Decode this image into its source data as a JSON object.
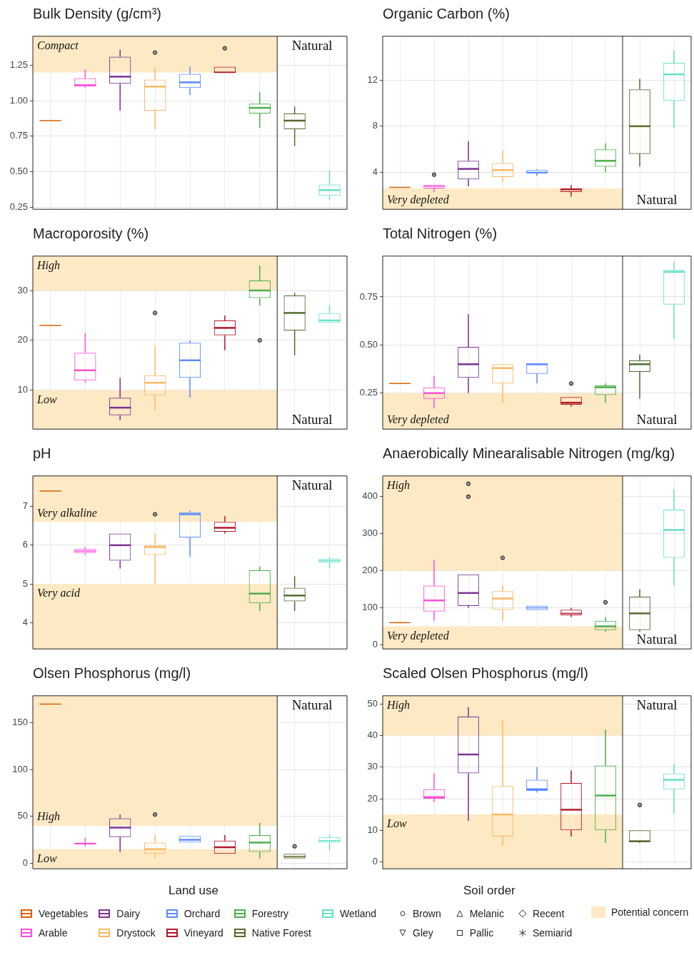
{
  "chart_data": [
    {
      "type": "box",
      "title": "Bulk Density (g/cm³)",
      "categories": [
        null,
        null,
        null,
        null,
        null,
        null,
        null,
        null,
        null
      ],
      "colors": [
        "#d95f02",
        "#ff4fd8",
        "#7b3294",
        "#fdb863",
        "#5b8cff",
        "#b2182b",
        "#4daf4a",
        "#556b2f",
        "#66e0c8"
      ],
      "boxes": [
        {
          "low": 0.86,
          "q1": 0.86,
          "median": 0.86,
          "q3": 0.86,
          "high": 0.86
        },
        {
          "low": 1.09,
          "q1": 1.1,
          "median": 1.11,
          "q3": 1.16,
          "high": 1.22
        },
        {
          "low": 0.93,
          "q1": 1.12,
          "median": 1.17,
          "q3": 1.31,
          "high": 1.36
        },
        {
          "low": 0.8,
          "q1": 0.93,
          "median": 1.1,
          "q3": 1.15,
          "high": 1.23,
          "outliers": [
            1.34
          ]
        },
        {
          "low": 1.04,
          "q1": 1.09,
          "median": 1.13,
          "q3": 1.19,
          "high": 1.24
        },
        {
          "low": 1.2,
          "q1": 1.2,
          "median": 1.2,
          "q3": 1.24,
          "high": 1.24,
          "outliers": [
            1.37
          ]
        },
        {
          "low": 0.81,
          "q1": 0.91,
          "median": 0.95,
          "q3": 0.98,
          "high": 1.06
        },
        {
          "low": 0.68,
          "q1": 0.8,
          "median": 0.86,
          "q3": 0.91,
          "high": 0.96
        },
        {
          "low": 0.3,
          "q1": 0.33,
          "median": 0.37,
          "q3": 0.41,
          "high": 0.51
        }
      ],
      "ylim": [
        0.235,
        1.455
      ],
      "yticks": [
        {
          "value": 0.25,
          "label": "0.25"
        },
        {
          "value": 0.5,
          "label": "0.50"
        },
        {
          "value": 0.75,
          "label": "0.75"
        },
        {
          "value": 1,
          "label": "1.00"
        },
        {
          "value": 1.25,
          "label": "1.25"
        }
      ],
      "grid": true,
      "tick_labels": "y",
      "bands": [
        {
          "axis": "y",
          "from": 1.2,
          "to": 1.455,
          "label": "Compact",
          "color": "#fde9c4"
        }
      ],
      "annotations": [
        "Natural"
      ]
    },
    {
      "type": "box",
      "title": "Organic Carbon (%)",
      "categories": [
        null,
        null,
        null,
        null,
        null,
        null,
        null,
        null,
        null
      ],
      "colors": [
        "#d95f02",
        "#ff4fd8",
        "#7b3294",
        "#fdb863",
        "#5b8cff",
        "#b2182b",
        "#4daf4a",
        "#556b2f",
        "#66e0c8"
      ],
      "boxes": [
        {
          "low": 2.7,
          "q1": 2.7,
          "median": 2.7,
          "q3": 2.7,
          "high": 2.7
        },
        {
          "low": 2.3,
          "q1": 2.6,
          "median": 2.8,
          "q3": 2.9,
          "high": 2.9,
          "outliers": [
            3.8
          ]
        },
        {
          "low": 2.8,
          "q1": 3.4,
          "median": 4.3,
          "q3": 5,
          "high": 6.7
        },
        {
          "low": 3.2,
          "q1": 3.6,
          "median": 4.2,
          "q3": 4.8,
          "high": 5.9
        },
        {
          "low": 3.7,
          "q1": 3.9,
          "median": 4,
          "q3": 4.2,
          "high": 4.3
        },
        {
          "low": 1.9,
          "q1": 2.3,
          "median": 2.5,
          "q3": 2.6,
          "high": 2.9
        },
        {
          "low": 4,
          "q1": 4.5,
          "median": 5,
          "q3": 6,
          "high": 6.5
        },
        {
          "low": 4.5,
          "q1": 5.6,
          "median": 8,
          "q3": 11.2,
          "high": 12.1
        },
        {
          "low": 7.8,
          "q1": 10.2,
          "median": 12.5,
          "q3": 13.5,
          "high": 14.6
        }
      ],
      "ylim": [
        0.8,
        15.8
      ],
      "yticks": [
        4,
        8,
        12
      ],
      "grid": true,
      "tick_labels": "y",
      "bands": [
        {
          "axis": "y",
          "from": 0.8,
          "to": 2.6,
          "label": "Very depleted",
          "color": "#fde9c4"
        }
      ],
      "annotations": [
        "Natural"
      ]
    },
    {
      "type": "box",
      "title": "Macroporosity (%)",
      "categories": [
        null,
        null,
        null,
        null,
        null,
        null,
        null,
        null,
        null
      ],
      "colors": [
        "#d95f02",
        "#ff4fd8",
        "#7b3294",
        "#fdb863",
        "#5b8cff",
        "#b2182b",
        "#4daf4a",
        "#556b2f",
        "#66e0c8"
      ],
      "boxes": [
        {
          "low": 23,
          "q1": 23,
          "median": 23,
          "q3": 23,
          "high": 23
        },
        {
          "low": 11.5,
          "q1": 12,
          "median": 14,
          "q3": 17.5,
          "high": 21.5
        },
        {
          "low": 4,
          "q1": 5,
          "median": 6.5,
          "q3": 8.5,
          "high": 12.5
        },
        {
          "low": 6,
          "q1": 9,
          "median": 11.5,
          "q3": 13,
          "high": 19,
          "outliers": [
            25.5
          ]
        },
        {
          "low": 8.5,
          "q1": 12.5,
          "median": 16,
          "q3": 19.5,
          "high": 20
        },
        {
          "low": 18,
          "q1": 21,
          "median": 22.5,
          "q3": 24,
          "high": 25
        },
        {
          "low": 27,
          "q1": 28.5,
          "median": 30,
          "q3": 32,
          "high": 35,
          "outliers": [
            20
          ]
        },
        {
          "low": 17,
          "q1": 22,
          "median": 25.5,
          "q3": 29,
          "high": 29.5
        },
        {
          "low": 23.5,
          "q1": 23.5,
          "median": 24,
          "q3": 25.5,
          "high": 27
        }
      ],
      "ylim": [
        2.2,
        36.9
      ],
      "yticks": [
        10,
        20,
        30
      ],
      "grid": true,
      "tick_labels": "y",
      "bands": [
        {
          "axis": "y",
          "from": 30,
          "to": 36.9,
          "label": "High",
          "color": "#fde9c4"
        },
        {
          "axis": "y",
          "from": 2.2,
          "to": 10,
          "label": "Low",
          "color": "#fde9c4"
        }
      ],
      "annotations": [
        "Natural"
      ]
    },
    {
      "type": "box",
      "title": "Total Nitrogen (%)",
      "categories": [
        null,
        null,
        null,
        null,
        null,
        null,
        null,
        null,
        null
      ],
      "colors": [
        "#d95f02",
        "#ff4fd8",
        "#7b3294",
        "#fdb863",
        "#5b8cff",
        "#b2182b",
        "#4daf4a",
        "#556b2f",
        "#66e0c8"
      ],
      "boxes": [
        {
          "low": 0.3,
          "q1": 0.3,
          "median": 0.3,
          "q3": 0.3,
          "high": 0.3
        },
        {
          "low": 0.17,
          "q1": 0.22,
          "median": 0.25,
          "q3": 0.28,
          "high": 0.34
        },
        {
          "low": 0.25,
          "q1": 0.33,
          "median": 0.4,
          "q3": 0.49,
          "high": 0.66
        },
        {
          "low": 0.2,
          "q1": 0.3,
          "median": 0.38,
          "q3": 0.4,
          "high": 0.4
        },
        {
          "low": 0.3,
          "q1": 0.35,
          "median": 0.4,
          "q3": 0.4,
          "high": 0.4
        },
        {
          "low": 0.18,
          "q1": 0.19,
          "median": 0.2,
          "q3": 0.23,
          "high": 0.23,
          "outliers": [
            0.3
          ]
        },
        {
          "low": 0.2,
          "q1": 0.24,
          "median": 0.28,
          "q3": 0.29,
          "high": 0.3
        },
        {
          "low": 0.22,
          "q1": 0.36,
          "median": 0.4,
          "q3": 0.42,
          "high": 0.45
        },
        {
          "low": 0.53,
          "q1": 0.71,
          "median": 0.88,
          "q3": 0.89,
          "high": 0.93
        }
      ],
      "ylim": [
        0.063,
        0.962
      ],
      "yticks": [
        {
          "value": 0.25,
          "label": "0.25"
        },
        {
          "value": 0.5,
          "label": "0.50"
        },
        {
          "value": 0.75,
          "label": "0.75"
        }
      ],
      "grid": true,
      "tick_labels": "y",
      "bands": [
        {
          "axis": "y",
          "from": 0.063,
          "to": 0.25,
          "label": "Very depleted",
          "color": "#fde9c4"
        }
      ],
      "annotations": [
        "Natural"
      ]
    },
    {
      "type": "box",
      "title": "pH",
      "categories": [
        null,
        null,
        null,
        null,
        null,
        null,
        null,
        null,
        null
      ],
      "colors": [
        "#d95f02",
        "#ff4fd8",
        "#7b3294",
        "#fdb863",
        "#5b8cff",
        "#b2182b",
        "#4daf4a",
        "#556b2f",
        "#66e0c8"
      ],
      "boxes": [
        {
          "low": 7.4,
          "q1": 7.4,
          "median": 7.4,
          "q3": 7.4,
          "high": 7.4
        },
        {
          "low": 5.75,
          "q1": 5.8,
          "median": 5.85,
          "q3": 5.9,
          "high": 5.95
        },
        {
          "low": 5.4,
          "q1": 5.6,
          "median": 6,
          "q3": 6.3,
          "high": 6.3
        },
        {
          "low": 5,
          "q1": 5.75,
          "median": 5.95,
          "q3": 6,
          "high": 6.3,
          "outliers": [
            6.8
          ]
        },
        {
          "low": 5.7,
          "q1": 6.2,
          "median": 6.8,
          "q3": 6.85,
          "high": 6.9
        },
        {
          "low": 6.3,
          "q1": 6.35,
          "median": 6.45,
          "q3": 6.6,
          "high": 6.75
        },
        {
          "low": 4.3,
          "q1": 4.5,
          "median": 4.75,
          "q3": 5.35,
          "high": 5.45
        },
        {
          "low": 4.3,
          "q1": 4.55,
          "median": 4.7,
          "q3": 4.9,
          "high": 5.2
        },
        {
          "low": 5.4,
          "q1": 5.55,
          "median": 5.6,
          "q3": 5.65,
          "high": 5.7
        }
      ],
      "ylim": [
        3.32,
        7.79
      ],
      "yticks": [
        4,
        5,
        6,
        7
      ],
      "grid": true,
      "tick_labels": "y",
      "bands": [
        {
          "axis": "y",
          "from": 6.6,
          "to": 7.79,
          "label": "Very alkaline",
          "color": "#fde9c4"
        },
        {
          "axis": "y",
          "from": 3.32,
          "to": 5,
          "label": "Very acid",
          "color": "#fde9c4"
        }
      ],
      "annotations": [
        "Natural"
      ]
    },
    {
      "type": "box",
      "title": "Anaerobically Minearalisable Nitrogen (mg/kg)",
      "categories": [
        null,
        null,
        null,
        null,
        null,
        null,
        null,
        null,
        null
      ],
      "colors": [
        "#d95f02",
        "#ff4fd8",
        "#7b3294",
        "#fdb863",
        "#5b8cff",
        "#b2182b",
        "#4daf4a",
        "#556b2f",
        "#66e0c8"
      ],
      "boxes": [
        {
          "low": 60,
          "q1": 60,
          "median": 60,
          "q3": 60,
          "high": 60
        },
        {
          "low": 65,
          "q1": 90,
          "median": 120,
          "q3": 160,
          "high": 230
        },
        {
          "low": 100,
          "q1": 105,
          "median": 140,
          "q3": 190,
          "high": 190,
          "outliers": [
            400,
            435
          ]
        },
        {
          "low": 65,
          "q1": 95,
          "median": 125,
          "q3": 145,
          "high": 160,
          "outliers": [
            235
          ]
        },
        {
          "low": 94,
          "q1": 94,
          "median": 100,
          "q3": 106,
          "high": 106
        },
        {
          "low": 75,
          "q1": 80,
          "median": 85,
          "q3": 95,
          "high": 100
        },
        {
          "low": 35,
          "q1": 40,
          "median": 50,
          "q3": 65,
          "high": 75,
          "outliers": [
            115
          ]
        },
        {
          "low": 35,
          "q1": 40,
          "median": 85,
          "q3": 130,
          "high": 150
        },
        {
          "low": 160,
          "q1": 235,
          "median": 310,
          "q3": 365,
          "high": 420
        }
      ],
      "ylim": [
        -11,
        456
      ],
      "yticks": [
        0,
        100,
        200,
        300,
        400
      ],
      "grid": true,
      "tick_labels": "y",
      "bands": [
        {
          "axis": "y",
          "from": 200,
          "to": 456,
          "label": "High",
          "color": "#fde9c4"
        },
        {
          "axis": "y",
          "from": -11,
          "to": 50,
          "label": "Very depleted",
          "color": "#fde9c4"
        }
      ],
      "annotations": [
        "Natural"
      ]
    },
    {
      "type": "box",
      "title": "Olsen Phosphorus (mg/l)",
      "categories": [
        null,
        null,
        null,
        null,
        null,
        null,
        null,
        null,
        null
      ],
      "colors": [
        "#d95f02",
        "#ff4fd8",
        "#7b3294",
        "#fdb863",
        "#5b8cff",
        "#b2182b",
        "#4daf4a",
        "#556b2f",
        "#66e0c8"
      ],
      "boxes": [
        {
          "low": 170,
          "q1": 170,
          "median": 170,
          "q3": 170,
          "high": 170
        },
        {
          "low": 18,
          "q1": 20,
          "median": 21,
          "q3": 22,
          "high": 27
        },
        {
          "low": 12,
          "q1": 28,
          "median": 38,
          "q3": 48,
          "high": 52
        },
        {
          "low": 5,
          "q1": 10,
          "median": 15,
          "q3": 22,
          "high": 30,
          "outliers": [
            52
          ]
        },
        {
          "low": 22,
          "q1": 22,
          "median": 25,
          "q3": 29,
          "high": 29
        },
        {
          "low": 10,
          "q1": 10,
          "median": 17,
          "q3": 24,
          "high": 30
        },
        {
          "low": 5,
          "q1": 12,
          "median": 22,
          "q3": 30,
          "high": 43
        },
        {
          "low": 5,
          "q1": 5,
          "median": 7,
          "q3": 10,
          "high": 10,
          "outliers": [
            18
          ]
        },
        {
          "low": 14,
          "q1": 22,
          "median": 24,
          "q3": 28,
          "high": 31
        }
      ],
      "ylim": [
        -6,
        178.9
      ],
      "yticks": [
        0,
        50,
        100,
        150
      ],
      "grid": true,
      "tick_labels": "y",
      "bands": [
        {
          "axis": "y",
          "from": 40,
          "to": 178.9,
          "label": "High",
          "color": "#fde9c4"
        },
        {
          "axis": "y",
          "from": -6,
          "to": 15,
          "label": "Low",
          "color": "#fde9c4"
        }
      ],
      "annotations": [
        "Natural"
      ]
    },
    {
      "type": "box",
      "title": "Scaled Olsen Phosphorus (mg/l)",
      "categories": [
        null,
        null,
        null,
        null,
        null,
        null,
        null,
        null,
        null
      ],
      "colors": [
        "#d95f02",
        "#ff4fd8",
        "#7b3294",
        "#fdb863",
        "#5b8cff",
        "#b2182b",
        "#4daf4a",
        "#556b2f",
        "#66e0c8"
      ],
      "boxes": [
        null,
        {
          "low": 19,
          "q1": 20,
          "median": 20.5,
          "q3": 23,
          "high": 28
        },
        {
          "low": 13,
          "q1": 28,
          "median": 34,
          "q3": 46,
          "high": 49
        },
        {
          "low": 5,
          "q1": 8,
          "median": 15,
          "q3": 24,
          "high": 45
        },
        {
          "low": 22,
          "q1": 22.5,
          "median": 23,
          "q3": 26,
          "high": 30
        },
        {
          "low": 8,
          "q1": 10,
          "median": 16.5,
          "q3": 25,
          "high": 29
        },
        {
          "low": 6,
          "q1": 10,
          "median": 21,
          "q3": 30.5,
          "high": 42
        },
        {
          "low": 6,
          "q1": 6.5,
          "median": 6.5,
          "q3": 10,
          "high": 10,
          "outliers": [
            18
          ]
        },
        {
          "low": 15,
          "q1": 23,
          "median": 26,
          "q3": 28,
          "high": 31
        }
      ],
      "ylim": [
        -2.2,
        52.6
      ],
      "yticks": [
        0,
        10,
        20,
        30,
        40,
        50
      ],
      "grid": true,
      "tick_labels": "y",
      "bands": [
        {
          "axis": "y",
          "from": 40,
          "to": 52.6,
          "label": "High",
          "color": "#fde9c4"
        },
        {
          "axis": "y",
          "from": -2.2,
          "to": 15,
          "label": "Low",
          "color": "#fde9c4"
        }
      ],
      "annotations": [
        "Natural"
      ]
    },
    {
      "type": "other",
      "annotations": [
        "Land use",
        "Soil order",
        "Vegetables",
        "Arable",
        "Dairy",
        "Drystock",
        "Orchard",
        "Vineyard",
        "Forestry",
        "Native Forest",
        "Wetland",
        "Brown",
        "Gley",
        "Melanic",
        "Pallic",
        "Recent",
        "Semiarid",
        "Potential concern"
      ]
    }
  ]
}
